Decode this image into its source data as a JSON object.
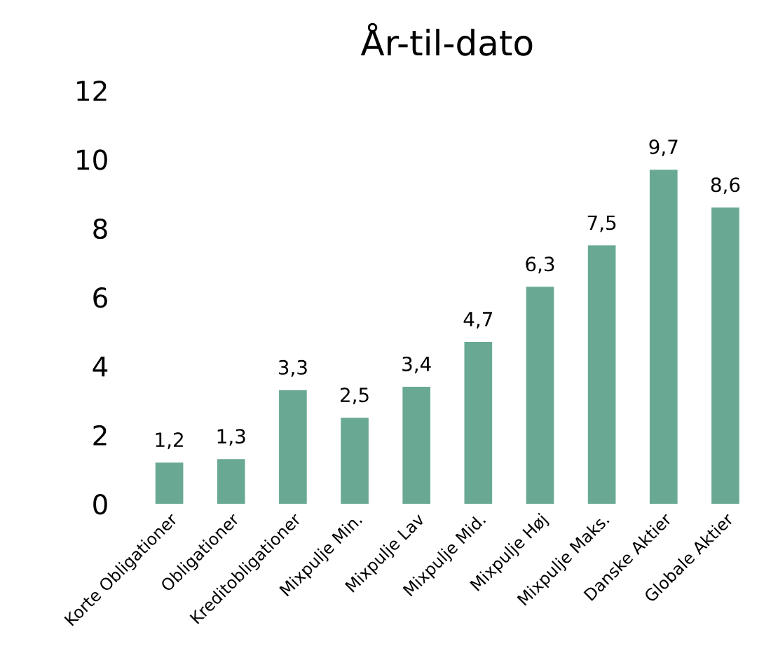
{
  "chart_data": {
    "type": "bar",
    "title": "År-til-dato",
    "categories": [
      "Korte Obligationer",
      "Obligationer",
      "Kreditobligationer",
      "Mixpulje Min.",
      "Mixpulje Lav",
      "Mixpulje Mid.",
      "Mixpulje Høj",
      "Mixpulje Maks.",
      "Danske Aktier",
      "Globale Aktier"
    ],
    "values": [
      1.2,
      1.3,
      3.3,
      2.5,
      3.4,
      4.7,
      6.3,
      7.5,
      9.7,
      8.6
    ],
    "value_labels": [
      "1,2",
      "1,3",
      "3,3",
      "2,5",
      "3,4",
      "4,7",
      "6,3",
      "7,5",
      "9,7",
      "8,6"
    ],
    "color": "#69a993",
    "ylim": [
      0,
      12
    ],
    "yticks": [
      0,
      2,
      4,
      6,
      8,
      10,
      12
    ],
    "grid": false
  }
}
